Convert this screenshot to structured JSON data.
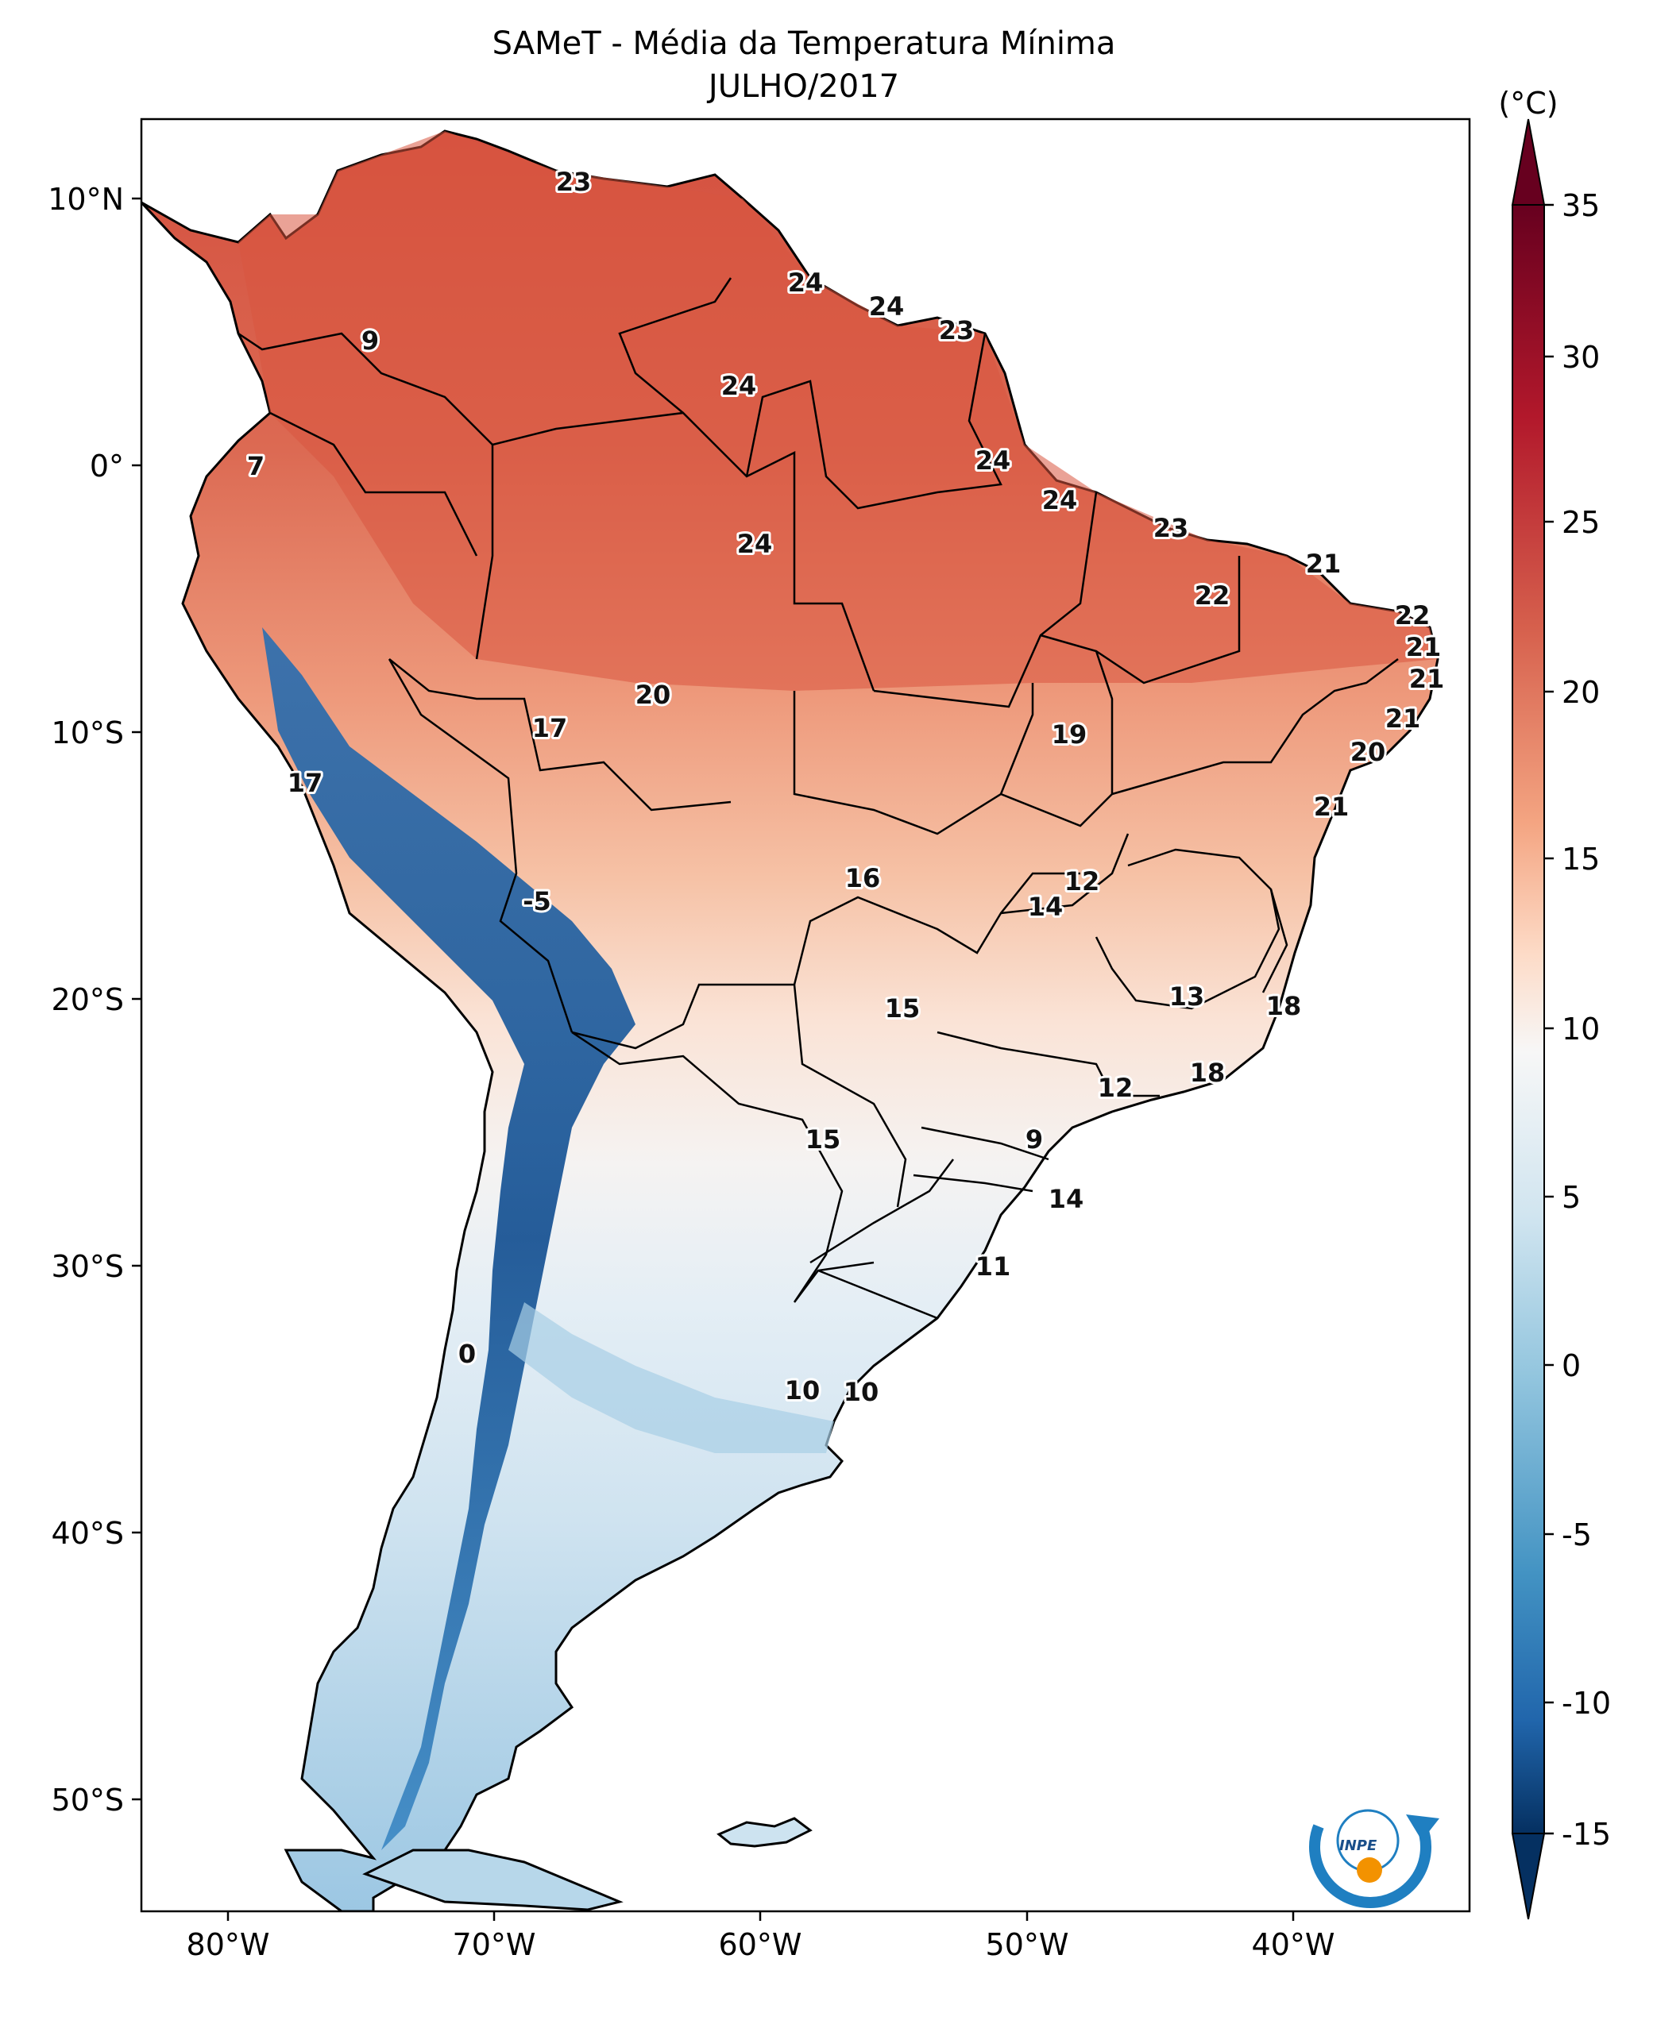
{
  "title": "SAMeT - Média da Temperatura Mínima",
  "subtitle": "JULHO/2017",
  "colorbar": {
    "unit_label": "(°C)",
    "ticks": [
      "35",
      "30",
      "25",
      "20",
      "15",
      "10",
      "5",
      "0",
      "-5",
      "-10",
      "-15"
    ]
  },
  "axes": {
    "lat_ticks": [
      "10°N",
      "0°",
      "10°S",
      "20°S",
      "30°S",
      "40°S",
      "50°S"
    ],
    "lon_ticks": [
      "80°W",
      "70°W",
      "60°W",
      "50°W",
      "40°W"
    ]
  },
  "logo_text": "INPE",
  "labels": [
    {
      "value": "23"
    },
    {
      "value": "9"
    },
    {
      "value": "24"
    },
    {
      "value": "24"
    },
    {
      "value": "23"
    },
    {
      "value": "24"
    },
    {
      "value": "7"
    },
    {
      "value": "24"
    },
    {
      "value": "24"
    },
    {
      "value": "24"
    },
    {
      "value": "23"
    },
    {
      "value": "21"
    },
    {
      "value": "22"
    },
    {
      "value": "22"
    },
    {
      "value": "21"
    },
    {
      "value": "21"
    },
    {
      "value": "20"
    },
    {
      "value": "17"
    },
    {
      "value": "19"
    },
    {
      "value": "21"
    },
    {
      "value": "20"
    },
    {
      "value": "17"
    },
    {
      "value": "21"
    },
    {
      "value": "16"
    },
    {
      "value": "12"
    },
    {
      "value": "14"
    },
    {
      "value": "-5"
    },
    {
      "value": "13"
    },
    {
      "value": "15"
    },
    {
      "value": "18"
    },
    {
      "value": "12"
    },
    {
      "value": "18"
    },
    {
      "value": "15"
    },
    {
      "value": "9"
    },
    {
      "value": "14"
    },
    {
      "value": "11"
    },
    {
      "value": "0"
    },
    {
      "value": "10"
    },
    {
      "value": "10"
    }
  ]
}
